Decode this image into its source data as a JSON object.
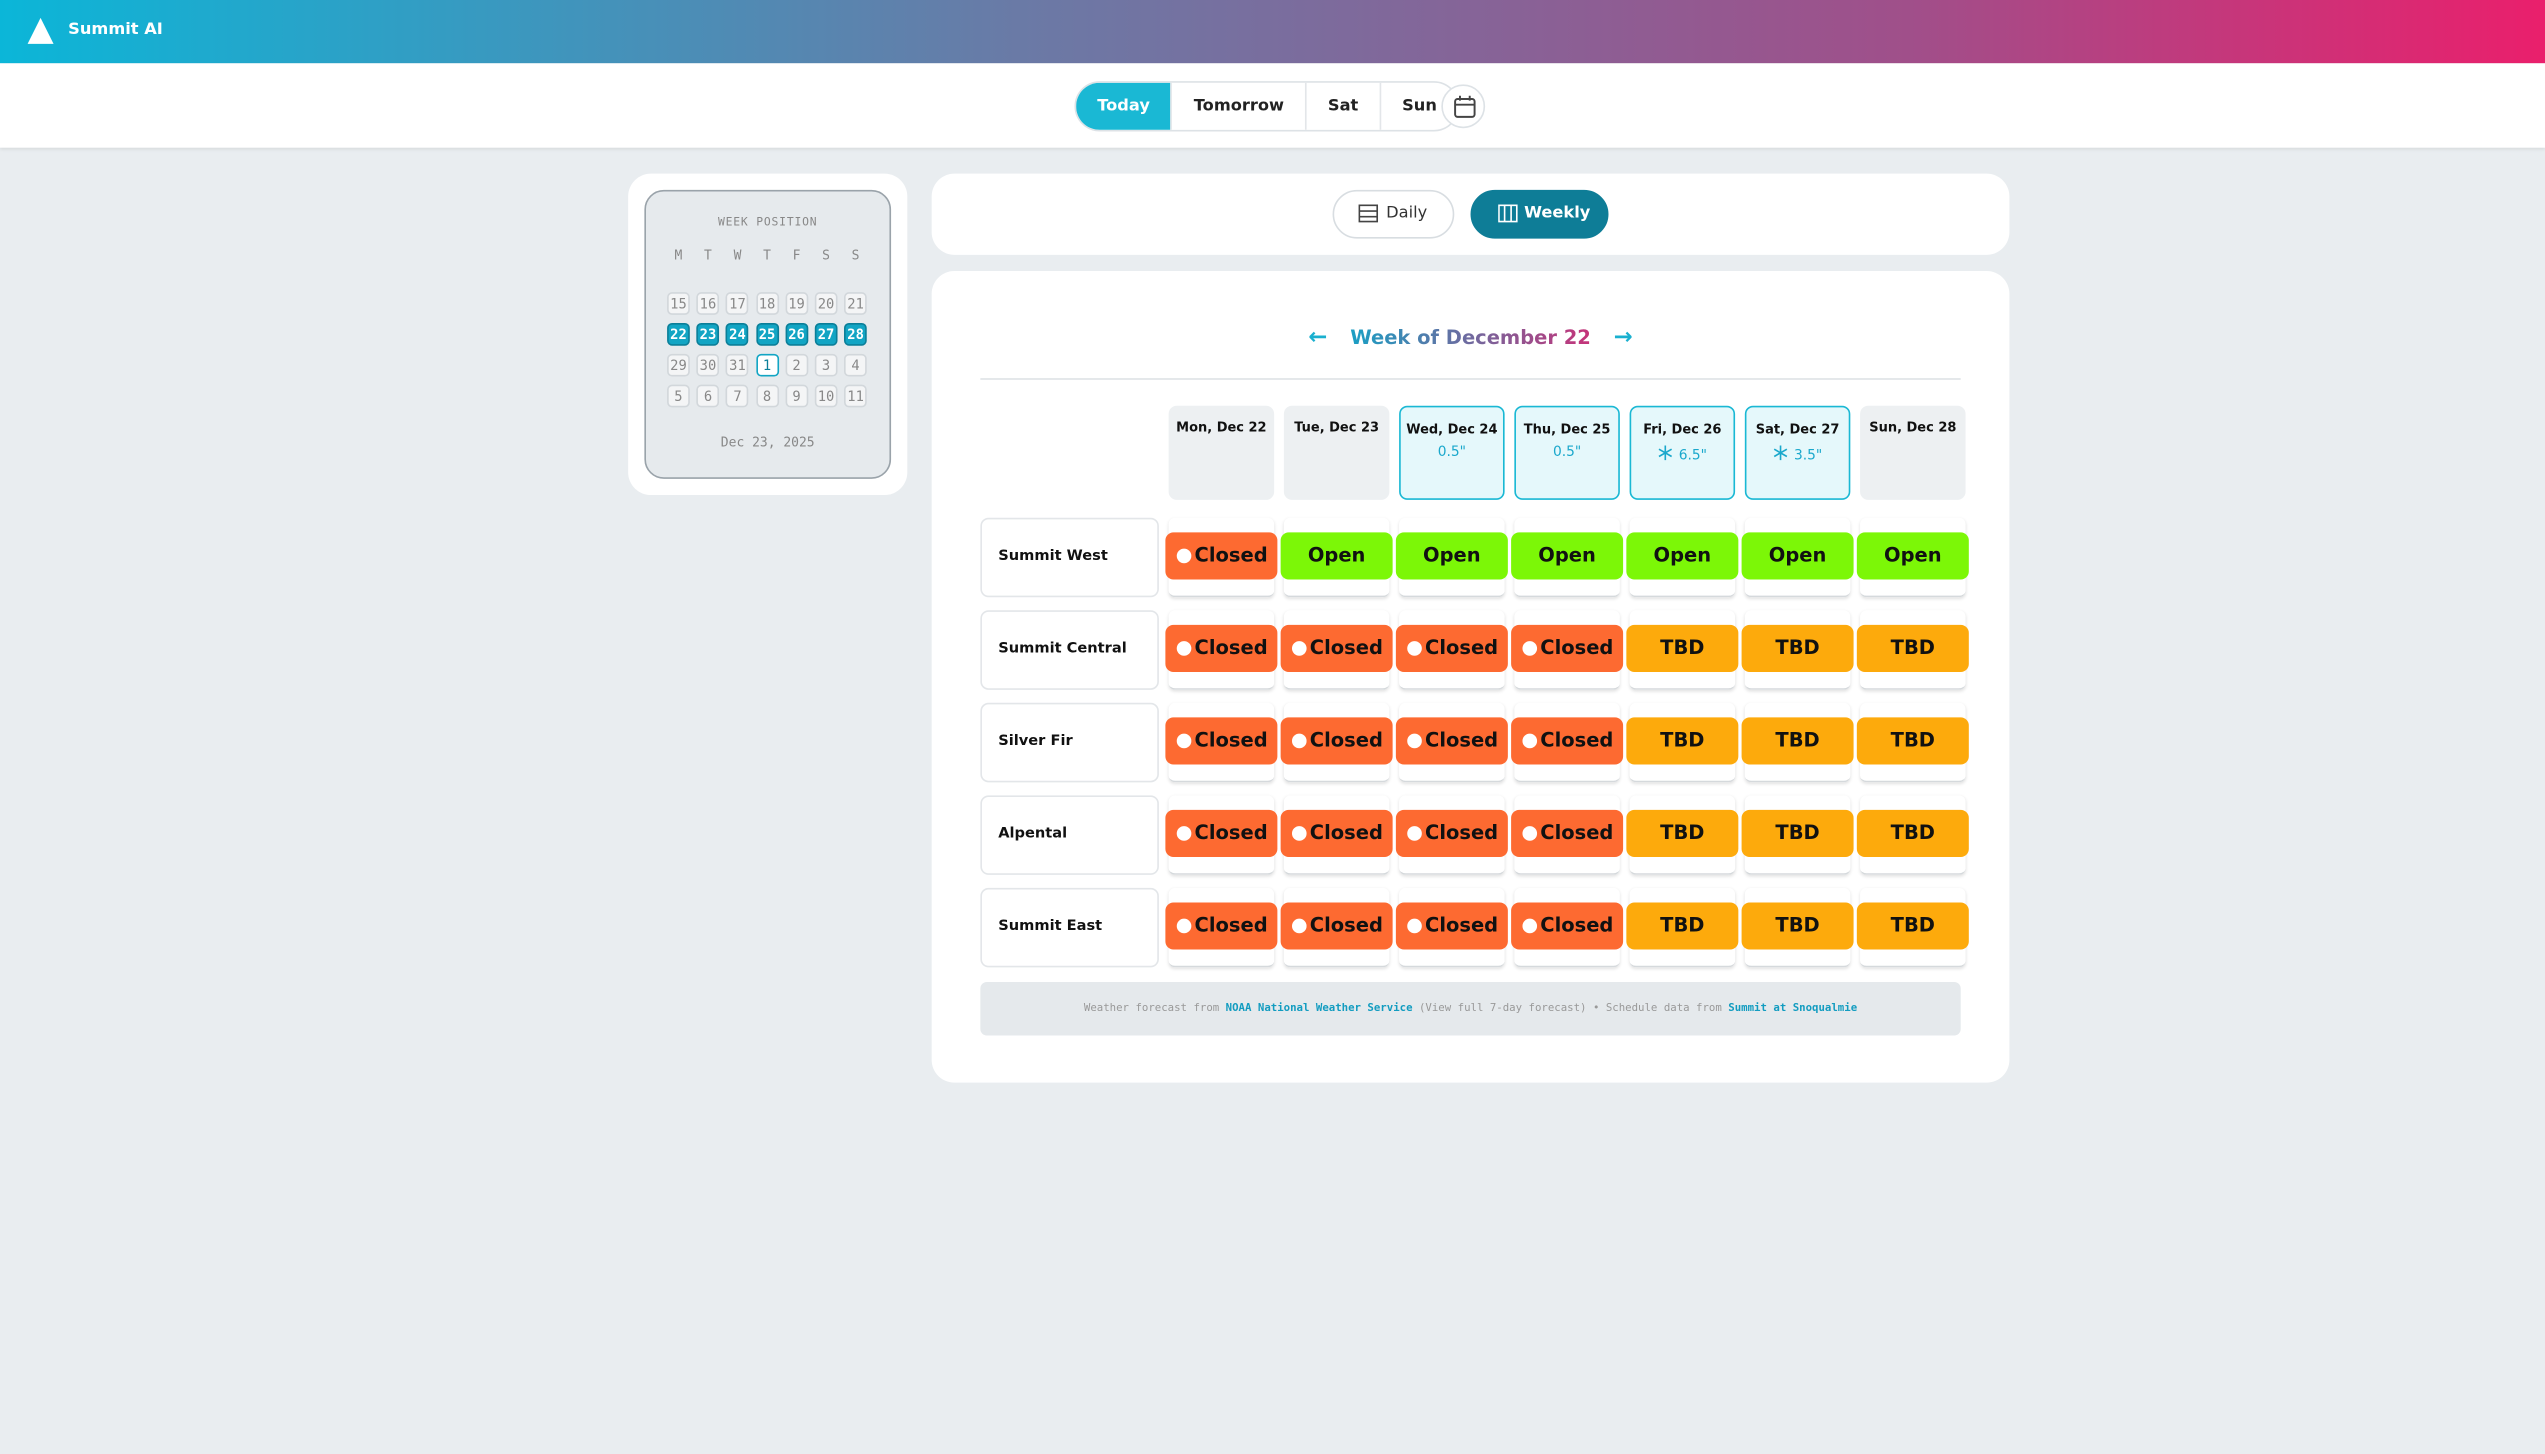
{
  "header": {
    "brand": "Summit AI"
  },
  "nav": {
    "tabs": [
      "Today",
      "Tomorrow",
      "Sat",
      "Sun"
    ]
  },
  "calendar": {
    "label": "WEEK POSITION",
    "weekdays": [
      "M",
      "T",
      "W",
      "T",
      "F",
      "S",
      "S"
    ],
    "weeks": [
      [
        "15",
        "16",
        "17",
        "18",
        "19",
        "20",
        "21"
      ],
      [
        "22",
        "23",
        "24",
        "25",
        "26",
        "27",
        "28"
      ],
      [
        "29",
        "30",
        "31",
        "1",
        "2",
        "3",
        "4"
      ],
      [
        "5",
        "6",
        "7",
        "8",
        "9",
        "10",
        "11"
      ]
    ],
    "date": "Dec 23, 2025"
  },
  "view": {
    "buttons": [
      "Daily",
      "Weekly"
    ]
  },
  "week": {
    "prev": "←",
    "title": "Week of December 22",
    "next": "→",
    "days": [
      {
        "label": "Mon, Dec 22"
      },
      {
        "label": "Tue, Dec 23"
      },
      {
        "label": "Wed, Dec 24",
        "snow": "0.5\""
      },
      {
        "label": "Thu, Dec 25",
        "snow": "0.5\""
      },
      {
        "label": "Fri, Dec 26",
        "snow": "6.5\"",
        "icon": "snowflake"
      },
      {
        "label": "Sat, Dec 27",
        "snow": "3.5\"",
        "icon": "snowflake"
      },
      {
        "label": "Sun, Dec 28"
      }
    ],
    "resorts": [
      {
        "name": "Summit West",
        "status": [
          "Closed",
          "Open",
          "Open",
          "Open",
          "Open",
          "Open",
          "Open"
        ]
      },
      {
        "name": "Summit Central",
        "status": [
          "Closed",
          "Closed",
          "Closed",
          "Closed",
          "TBD",
          "TBD",
          "TBD"
        ]
      },
      {
        "name": "Silver Fir",
        "status": [
          "Closed",
          "Closed",
          "Closed",
          "Closed",
          "TBD",
          "TBD",
          "TBD"
        ]
      },
      {
        "name": "Alpental",
        "status": [
          "Closed",
          "Closed",
          "Closed",
          "Closed",
          "TBD",
          "TBD",
          "TBD"
        ]
      },
      {
        "name": "Summit East",
        "status": [
          "Closed",
          "Closed",
          "Closed",
          "Closed",
          "TBD",
          "TBD",
          "TBD"
        ]
      }
    ]
  },
  "footer": {
    "parts": [
      "Weather forecast from ",
      "NOAA National Weather Service",
      " (View full 7-day forecast) • Schedule data from ",
      "Summit at Snoqualmie"
    ]
  }
}
